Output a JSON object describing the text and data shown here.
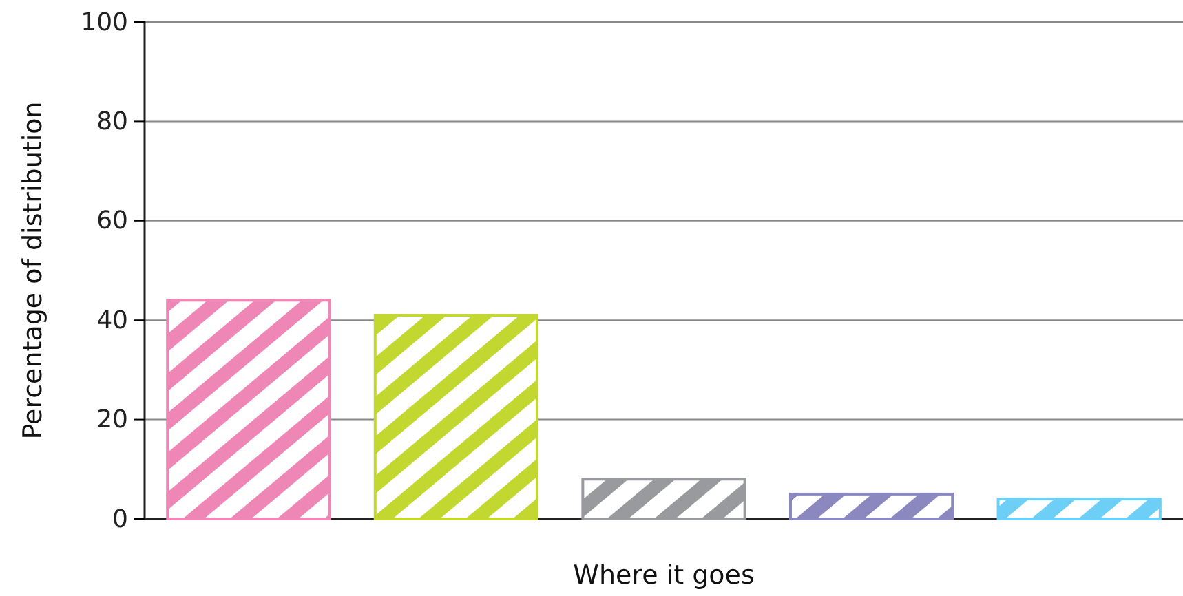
{
  "chart_data": {
    "type": "bar",
    "xlabel": "Where it goes",
    "ylabel": "Percentage of distribution",
    "categories": [
      null,
      null,
      null,
      null,
      null
    ],
    "values": [
      44,
      41,
      8,
      5,
      4
    ],
    "colors": [
      "#ee86b6",
      "#c2d72f",
      "#999a9d",
      "#8b88bf",
      "#6dcff6"
    ],
    "ylim": [
      0,
      100
    ],
    "yticks": [
      0,
      20,
      40,
      60,
      80,
      100
    ],
    "grid": "y"
  }
}
